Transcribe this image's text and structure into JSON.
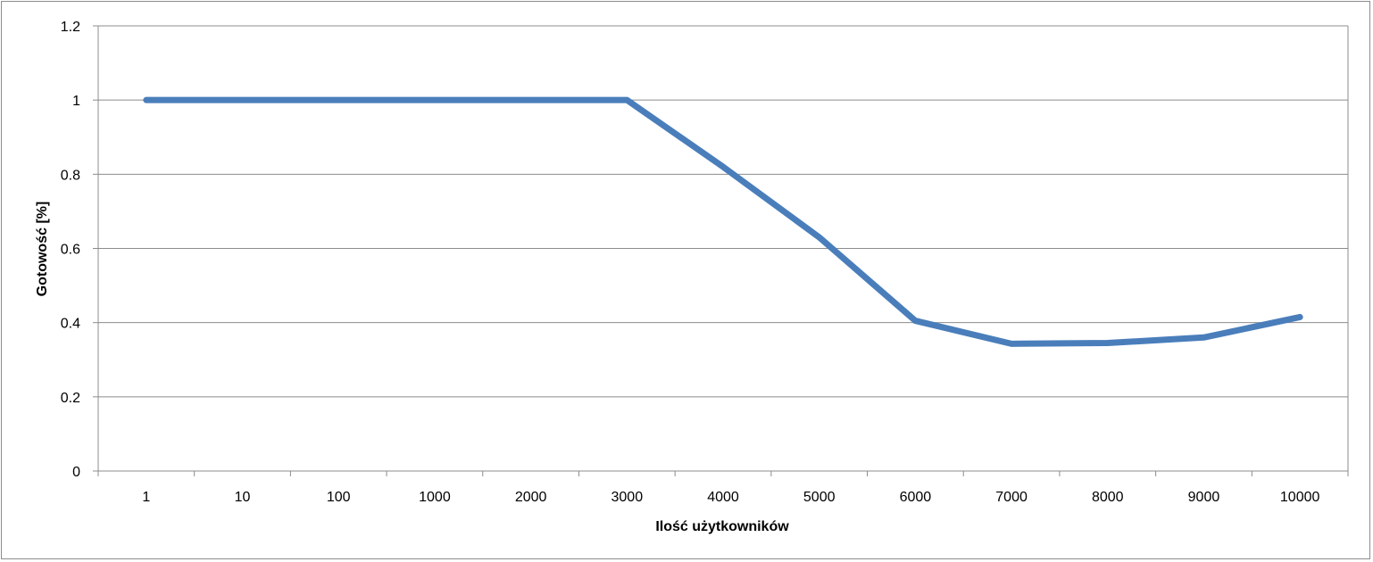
{
  "chart_data": {
    "type": "line",
    "title": "",
    "xlabel": "Ilość użytkowników",
    "ylabel": "Gotowość [%]",
    "categories": [
      "1",
      "10",
      "100",
      "1000",
      "2000",
      "3000",
      "4000",
      "5000",
      "6000",
      "7000",
      "8000",
      "9000",
      "10000"
    ],
    "series": [
      {
        "values": [
          1.0,
          1.0,
          1.0,
          1.0,
          1.0,
          1.0,
          0.82,
          0.63,
          0.405,
          0.343,
          0.345,
          0.36,
          0.415
        ]
      }
    ],
    "ylim": [
      0,
      1.2
    ],
    "yticks": [
      0,
      0.2,
      0.4,
      0.6,
      0.8,
      1,
      1.2
    ],
    "ytick_labels": [
      "0",
      "0.2",
      "0.4",
      "0.6",
      "0.8",
      "1",
      "1.2"
    ],
    "grid": true,
    "legend": "none",
    "colors": {
      "line": "#4a7ebb",
      "grid": "#8c8c8c",
      "axis": "#8c8c8c"
    }
  }
}
